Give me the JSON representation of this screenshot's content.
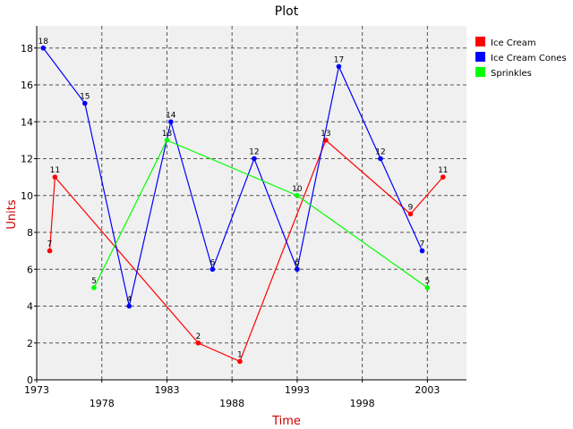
{
  "chart_data": {
    "type": "line",
    "title": "Plot",
    "xlabel": "Time",
    "ylabel": "Units",
    "xlim": [
      1973,
      2006
    ],
    "ylim": [
      0,
      19.2
    ],
    "x_ticks_top": [
      "1973",
      "1983",
      "1993",
      "2003"
    ],
    "x_ticks_bottom": [
      "1978",
      "1988",
      "1998"
    ],
    "y_ticks": [
      "0",
      "2",
      "4",
      "6",
      "8",
      "10",
      "12",
      "14",
      "16",
      "18"
    ],
    "grid": true,
    "legend_position": "right",
    "colors": {
      "plot_bg": "#f0f0f0",
      "grid": "#555555",
      "label": "#cc0000"
    },
    "series": [
      {
        "name": "Ice Cream",
        "color": "#ff0000",
        "points": [
          {
            "x": 1974.0,
            "y": 7,
            "label": "7"
          },
          {
            "x": 1974.4,
            "y": 11,
            "label": "11"
          },
          {
            "x": 1985.4,
            "y": 2,
            "label": "2"
          },
          {
            "x": 1988.6,
            "y": 1,
            "label": "1"
          },
          {
            "x": 1995.2,
            "y": 13,
            "label": "13"
          },
          {
            "x": 2001.7,
            "y": 9,
            "label": "9"
          },
          {
            "x": 2004.2,
            "y": 11,
            "label": "11"
          }
        ]
      },
      {
        "name": "Ice Cream Cones",
        "color": "#0000ff",
        "points": [
          {
            "x": 1973.5,
            "y": 18,
            "label": "18"
          },
          {
            "x": 1976.7,
            "y": 15,
            "label": "15"
          },
          {
            "x": 1980.1,
            "y": 4,
            "label": "4"
          },
          {
            "x": 1983.3,
            "y": 14,
            "label": "14"
          },
          {
            "x": 1986.5,
            "y": 6,
            "label": "6"
          },
          {
            "x": 1989.7,
            "y": 12,
            "label": "12"
          },
          {
            "x": 1993.0,
            "y": 6,
            "label": "6"
          },
          {
            "x": 1996.2,
            "y": 17,
            "label": "17"
          },
          {
            "x": 1999.4,
            "y": 12,
            "label": "12"
          },
          {
            "x": 2002.6,
            "y": 7,
            "label": "7"
          }
        ]
      },
      {
        "name": "Sprinkles",
        "color": "#00ff00",
        "points": [
          {
            "x": 1977.4,
            "y": 5,
            "label": "5"
          },
          {
            "x": 1983.0,
            "y": 13,
            "label": "13"
          },
          {
            "x": 1993.0,
            "y": 10,
            "label": "10"
          },
          {
            "x": 2003.0,
            "y": 5,
            "label": "5"
          }
        ]
      }
    ]
  }
}
